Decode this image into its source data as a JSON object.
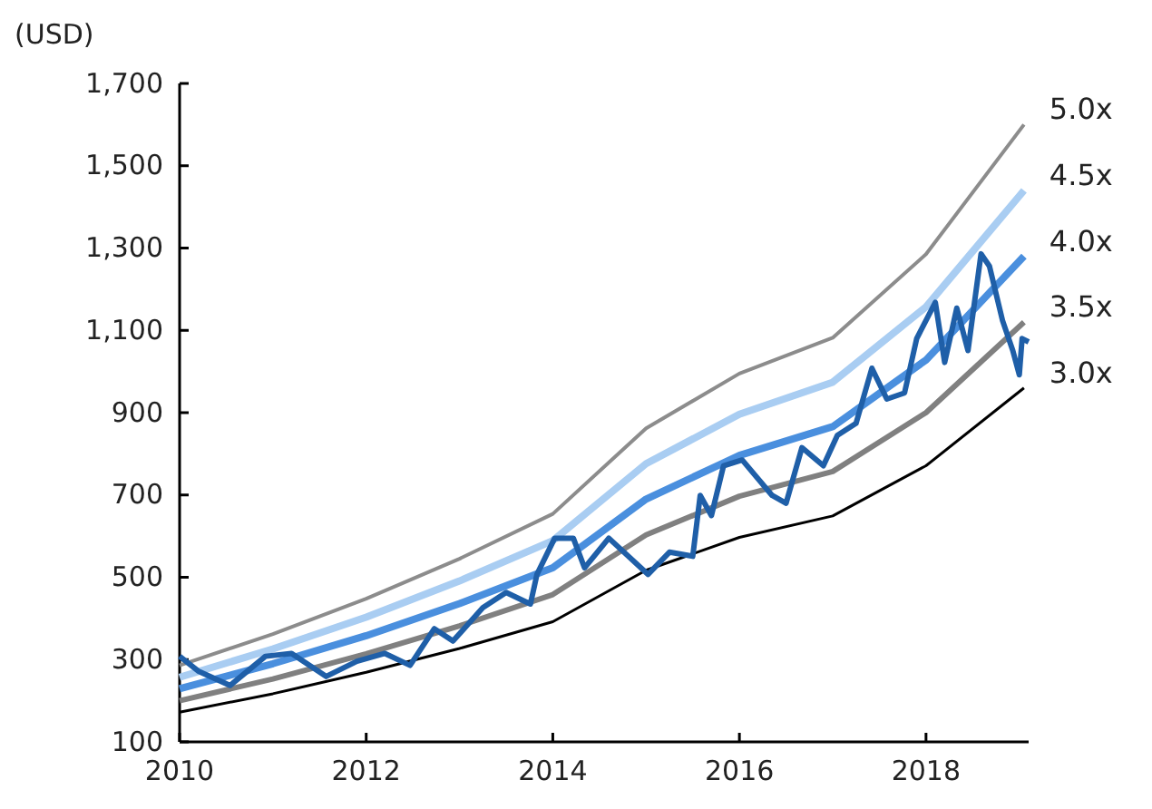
{
  "chart_data": {
    "type": "line",
    "ylabel": "(USD)",
    "xlim": [
      2010,
      2019.1
    ],
    "xticks": [
      2010,
      2012,
      2014,
      2016,
      2018
    ],
    "ylim": [
      100,
      1700
    ],
    "yticks": [
      100,
      300,
      500,
      700,
      900,
      {
        "value": 1100,
        "label": "1,100"
      },
      {
        "value": 1300,
        "label": "1,300"
      },
      {
        "value": 1500,
        "label": "1,500"
      },
      {
        "value": 1700,
        "label": "1,700"
      }
    ],
    "grid": false,
    "marker": "none",
    "line_style": "solid",
    "series": [
      {
        "name": "5.0x",
        "color": "#8c8c8c",
        "x": [
          2010,
          2011,
          2012,
          2013,
          2014,
          2015,
          2016,
          2017,
          2018,
          2019.05
        ],
        "values": [
          286,
          362,
          448,
          545,
          654,
          862,
          995,
          1082,
          1285,
          1600
        ]
      },
      {
        "name": "4.5x",
        "color": "#a9cdf2",
        "x": [
          2010,
          2011,
          2012,
          2013,
          2014,
          2015,
          2016,
          2017,
          2018,
          2019.05
        ],
        "values": [
          257,
          326,
          403,
          491,
          589,
          776,
          896,
          974,
          1157,
          1440
        ]
      },
      {
        "name": "4.0x",
        "color": "#4a8fde",
        "x": [
          2010,
          2011,
          2012,
          2013,
          2014,
          2015,
          2016,
          2017,
          2018,
          2019.05
        ],
        "values": [
          229,
          290,
          358,
          436,
          523,
          690,
          796,
          866,
          1028,
          1280
        ]
      },
      {
        "name": "3.5x",
        "color": "#808080",
        "x": [
          2010,
          2011,
          2012,
          2013,
          2014,
          2015,
          2016,
          2017,
          2018,
          2019.05
        ],
        "values": [
          200,
          253,
          314,
          382,
          458,
          603,
          697,
          757,
          900,
          1120
        ]
      },
      {
        "name": "3.0x",
        "color": "#000000",
        "x": [
          2010,
          2011,
          2012,
          2013,
          2014,
          2015,
          2016,
          2017,
          2018,
          2019.05
        ],
        "values": [
          172,
          217,
          269,
          327,
          392,
          517,
          597,
          649,
          771,
          960
        ]
      },
      {
        "color": "#1f5fa8",
        "x": [
          2010,
          2010.2,
          2010.54,
          2010.92,
          2011.2,
          2011.57,
          2011.9,
          2012.2,
          2012.47,
          2012.73,
          2012.93,
          2013.25,
          2013.5,
          2013.76,
          2013.83,
          2014.02,
          2014.22,
          2014.34,
          2014.6,
          2015.02,
          2015.25,
          2015.5,
          2015.58,
          2015.7,
          2015.83,
          2016.03,
          2016.35,
          2016.5,
          2016.67,
          2016.9,
          2017.05,
          2017.25,
          2017.42,
          2017.58,
          2017.77,
          2017.9,
          2018.1,
          2018.2,
          2018.33,
          2018.45,
          2018.59,
          2018.68,
          2018.82,
          2018.93,
          2019,
          2019.03,
          2019.1
        ],
        "values": [
          308,
          272,
          237,
          308,
          315,
          259,
          296,
          315,
          286,
          375,
          345,
          426,
          463,
          435,
          507,
          595,
          595,
          523,
          595,
          507,
          561,
          551,
          699,
          650,
          771,
          785,
          699,
          680,
          815,
          771,
          845,
          874,
          1008,
          933,
          948,
          1080,
          1168,
          1022,
          1154,
          1051,
          1286,
          1256,
          1124,
          1051,
          992,
          1080,
          1072
        ]
      }
    ]
  }
}
